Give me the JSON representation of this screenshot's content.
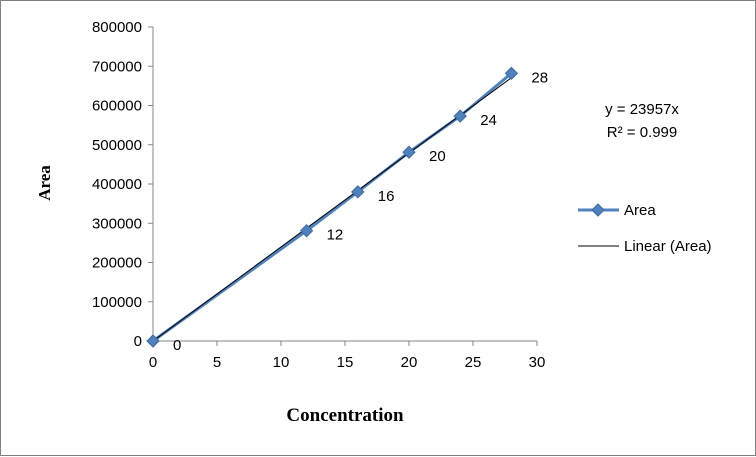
{
  "chart_data": {
    "type": "scatter",
    "xlabel": "Concentration",
    "ylabel": "Area",
    "xlim": [
      0,
      30
    ],
    "ylim": [
      0,
      800000
    ],
    "xticks": [
      "0",
      "5",
      "10",
      "15",
      "20",
      "25",
      "30"
    ],
    "yticks": [
      "0",
      "100000",
      "200000",
      "300000",
      "400000",
      "500000",
      "600000",
      "700000",
      "800000"
    ],
    "grid": false,
    "legend_position": "right",
    "series": [
      {
        "name": "Area",
        "x": [
          0,
          12,
          16,
          20,
          24,
          28
        ],
        "y": [
          0,
          281000,
          380000,
          481000,
          573000,
          682000
        ],
        "point_labels": [
          "0",
          "12",
          "16",
          "20",
          "24",
          "28"
        ],
        "color": "#4f81bd",
        "marker": "diamond"
      }
    ],
    "trendline": {
      "name": "Linear (Area)",
      "slope": 23957,
      "x_range": [
        0,
        28
      ],
      "color": "#000000",
      "equation": "y = 23957x",
      "r_squared": "R² = 0.999"
    }
  }
}
